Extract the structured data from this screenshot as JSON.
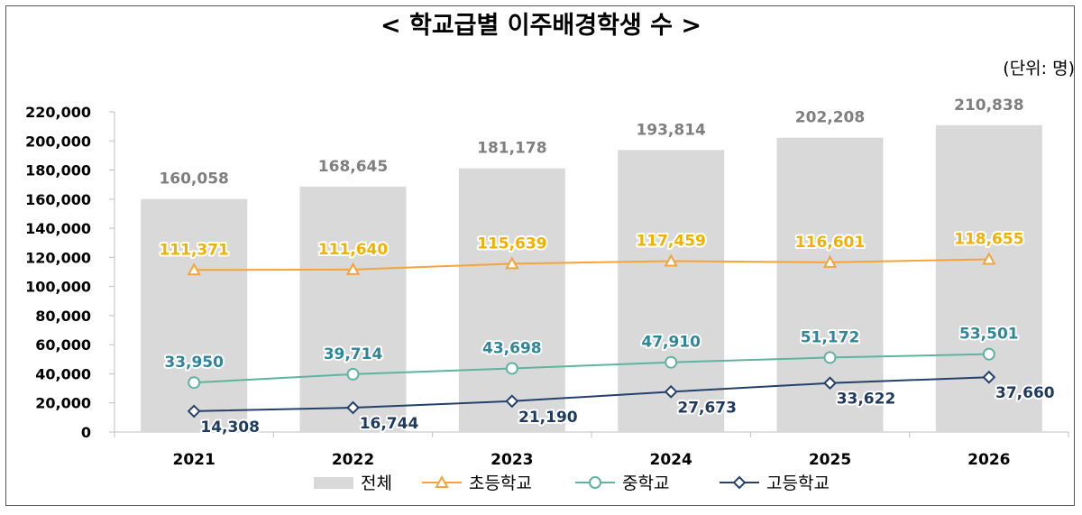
{
  "chart_data": {
    "type": "bar+line",
    "title": "< 학교급별 이주배경학생 수 >",
    "unit": "(단위: 명)",
    "categories": [
      "2021",
      "2022",
      "2023",
      "2024",
      "2025",
      "2026"
    ],
    "ylim": [
      0,
      220000
    ],
    "yticks": [
      0,
      20000,
      40000,
      60000,
      80000,
      100000,
      120000,
      140000,
      160000,
      180000,
      200000,
      220000
    ],
    "ytick_labels": [
      "0",
      "20,000",
      "40,000",
      "60,000",
      "80,000",
      "100,000",
      "120,000",
      "140,000",
      "160,000",
      "180,000",
      "200,000",
      "220,000"
    ],
    "grid": false,
    "legend_position": "bottom",
    "bar_series": {
      "name": "전체",
      "color": "#d9d9d9",
      "label_color": "#7f7f7f",
      "values": [
        160058,
        168645,
        181178,
        193814,
        202208,
        210838
      ],
      "labels": [
        "160,058",
        "168,645",
        "181,178",
        "193,814",
        "202,208",
        "210,838"
      ]
    },
    "line_series": [
      {
        "name": "초등학교",
        "marker": "triangle",
        "color": "#f5a43b",
        "label_color": "#f2b100",
        "values": [
          111371,
          111640,
          115639,
          117459,
          116601,
          118655
        ],
        "labels": [
          "111,371",
          "111,640",
          "115,639",
          "117,459",
          "116,601",
          "118,655"
        ],
        "label_position": "above"
      },
      {
        "name": "중학교",
        "marker": "circle",
        "color": "#5fb4a0",
        "label_color": "#2e8699",
        "values": [
          33950,
          39714,
          43698,
          47910,
          51172,
          53501
        ],
        "labels": [
          "33,950",
          "39,714",
          "43,698",
          "47,910",
          "51,172",
          "53,501"
        ],
        "label_position": "above"
      },
      {
        "name": "고등학교",
        "marker": "diamond",
        "color": "#24406b",
        "label_color": "#1f3a5f",
        "values": [
          14308,
          16744,
          21190,
          27673,
          33622,
          37660
        ],
        "labels": [
          "14,308",
          "16,744",
          "21,190",
          "27,673",
          "33,622",
          "37,660"
        ],
        "label_position": "below"
      }
    ]
  }
}
